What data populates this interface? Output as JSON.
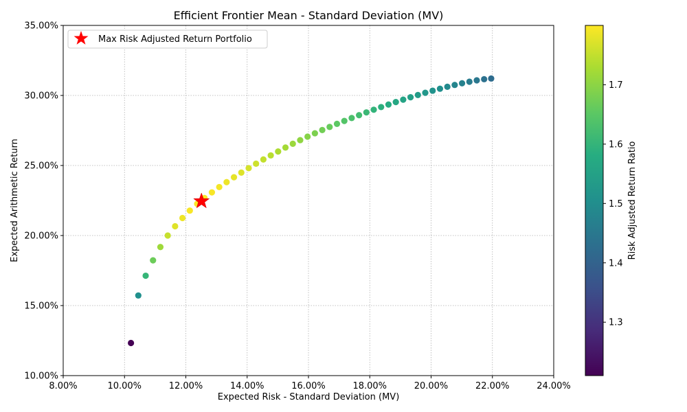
{
  "chart_data": {
    "type": "scatter",
    "title": "Efficient Frontier Mean - Standard Deviation (MV)",
    "xlabel": "Expected Risk - Standard Deviation (MV)",
    "ylabel": "Expected Arithmetic Return",
    "xlim": [
      0.08,
      0.24
    ],
    "ylim": [
      0.1,
      0.35
    ],
    "x_ticks": [
      0.08,
      0.1,
      0.12,
      0.14,
      0.16,
      0.18,
      0.2,
      0.22,
      0.24
    ],
    "x_tick_labels": [
      "8.00%",
      "10.00%",
      "12.00%",
      "14.00%",
      "16.00%",
      "18.00%",
      "20.00%",
      "22.00%",
      "24.00%"
    ],
    "y_ticks": [
      0.1,
      0.15,
      0.2,
      0.25,
      0.3,
      0.35
    ],
    "y_tick_labels": [
      "10.00%",
      "15.00%",
      "20.00%",
      "25.00%",
      "30.00%",
      "35.00%"
    ],
    "grid": true,
    "legend_placement": "upper-left",
    "legend": [
      {
        "label": "Max Risk Adjusted Return Portfolio",
        "marker": "star",
        "color": "#ff0000"
      }
    ],
    "colorbar": {
      "label": "Risk Adjusted Return Ratio",
      "colormap": "viridis",
      "range": [
        1.21,
        1.8
      ],
      "ticks": [
        1.3,
        1.4,
        1.5,
        1.6,
        1.7
      ],
      "tick_labels": [
        "1.3",
        "1.4",
        "1.5",
        "1.6",
        "1.7"
      ]
    },
    "points": [
      {
        "x": 0.1021,
        "y": 0.1233,
        "ratio": 1.208
      },
      {
        "x": 0.1045,
        "y": 0.1572,
        "ratio": 1.504
      },
      {
        "x": 0.1069,
        "y": 0.1713,
        "ratio": 1.602
      },
      {
        "x": 0.1093,
        "y": 0.1823,
        "ratio": 1.668
      },
      {
        "x": 0.1117,
        "y": 0.1918,
        "ratio": 1.717
      },
      {
        "x": 0.1141,
        "y": 0.2,
        "ratio": 1.753
      },
      {
        "x": 0.1165,
        "y": 0.2066,
        "ratio": 1.774
      },
      {
        "x": 0.1189,
        "y": 0.2125,
        "ratio": 1.787
      },
      {
        "x": 0.1213,
        "y": 0.2178,
        "ratio": 1.796
      },
      {
        "x": 0.1237,
        "y": 0.2226,
        "ratio": 1.8
      },
      {
        "x": 0.1261,
        "y": 0.2268,
        "ratio": 1.798
      },
      {
        "x": 0.1285,
        "y": 0.2308,
        "ratio": 1.796
      },
      {
        "x": 0.1309,
        "y": 0.2346,
        "ratio": 1.792
      },
      {
        "x": 0.1333,
        "y": 0.2381,
        "ratio": 1.786
      },
      {
        "x": 0.1357,
        "y": 0.2416,
        "ratio": 1.78
      },
      {
        "x": 0.1381,
        "y": 0.2449,
        "ratio": 1.773
      },
      {
        "x": 0.1405,
        "y": 0.2481,
        "ratio": 1.766
      },
      {
        "x": 0.1429,
        "y": 0.2513,
        "ratio": 1.759
      },
      {
        "x": 0.1453,
        "y": 0.2543,
        "ratio": 1.75
      },
      {
        "x": 0.1477,
        "y": 0.2572,
        "ratio": 1.741
      },
      {
        "x": 0.1501,
        "y": 0.26,
        "ratio": 1.732
      },
      {
        "x": 0.1525,
        "y": 0.2628,
        "ratio": 1.723
      },
      {
        "x": 0.1549,
        "y": 0.2655,
        "ratio": 1.714
      },
      {
        "x": 0.1573,
        "y": 0.2681,
        "ratio": 1.704
      },
      {
        "x": 0.1597,
        "y": 0.2706,
        "ratio": 1.694
      },
      {
        "x": 0.1621,
        "y": 0.273,
        "ratio": 1.684
      },
      {
        "x": 0.1645,
        "y": 0.2753,
        "ratio": 1.674
      },
      {
        "x": 0.1669,
        "y": 0.2775,
        "ratio": 1.663
      },
      {
        "x": 0.1693,
        "y": 0.2797,
        "ratio": 1.652
      },
      {
        "x": 0.1717,
        "y": 0.2818,
        "ratio": 1.641
      },
      {
        "x": 0.1741,
        "y": 0.2839,
        "ratio": 1.631
      },
      {
        "x": 0.1765,
        "y": 0.2859,
        "ratio": 1.62
      },
      {
        "x": 0.1789,
        "y": 0.2879,
        "ratio": 1.609
      },
      {
        "x": 0.1813,
        "y": 0.2898,
        "ratio": 1.598
      },
      {
        "x": 0.1837,
        "y": 0.2917,
        "ratio": 1.588
      },
      {
        "x": 0.1861,
        "y": 0.2935,
        "ratio": 1.577
      },
      {
        "x": 0.1885,
        "y": 0.2953,
        "ratio": 1.566
      },
      {
        "x": 0.1909,
        "y": 0.297,
        "ratio": 1.556
      },
      {
        "x": 0.1933,
        "y": 0.2987,
        "ratio": 1.545
      },
      {
        "x": 0.1957,
        "y": 0.3003,
        "ratio": 1.535
      },
      {
        "x": 0.1981,
        "y": 0.3019,
        "ratio": 1.524
      },
      {
        "x": 0.2005,
        "y": 0.3034,
        "ratio": 1.514
      },
      {
        "x": 0.2029,
        "y": 0.3048,
        "ratio": 1.503
      },
      {
        "x": 0.2053,
        "y": 0.3062,
        "ratio": 1.492
      },
      {
        "x": 0.2077,
        "y": 0.3075,
        "ratio": 1.481
      },
      {
        "x": 0.2101,
        "y": 0.3087,
        "ratio": 1.47
      },
      {
        "x": 0.2125,
        "y": 0.3098,
        "ratio": 1.459
      },
      {
        "x": 0.2149,
        "y": 0.3108,
        "ratio": 1.447
      },
      {
        "x": 0.2173,
        "y": 0.3116,
        "ratio": 1.435
      },
      {
        "x": 0.2196,
        "y": 0.3121,
        "ratio": 1.422
      }
    ],
    "max_portfolio": {
      "x": 0.1251,
      "y": 0.2245
    }
  }
}
